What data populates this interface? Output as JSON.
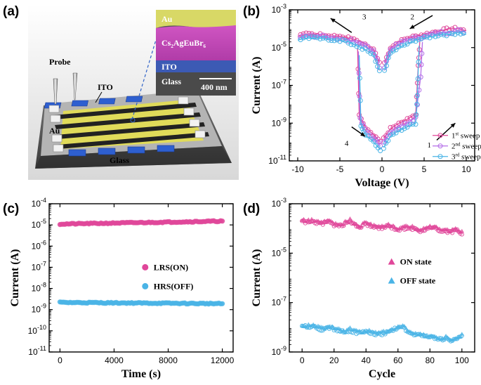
{
  "panels": {
    "a": {
      "label": "(a)",
      "probe_label": "Probe",
      "ito_label": "ITO",
      "au_label": "Au",
      "glass_label": "Glass",
      "inset": {
        "layer_au": "Au",
        "layer_cs": "Cs",
        "layer_cs_sub1": "2",
        "layer_cs_mid": "AgEuBr",
        "layer_cs_sub2": "6",
        "layer_ito": "ITO",
        "layer_glass": "Glass",
        "scale_bar": "400 nm"
      }
    },
    "b": {
      "label": "(b)"
    },
    "c": {
      "label": "(c)"
    },
    "d": {
      "label": "(d)"
    }
  },
  "colors": {
    "pink": "#e0479a",
    "purple": "#b46ee8",
    "cyan": "#4ab4e6",
    "au_yellow": "#e8e63a",
    "inset_pink": "#c848b8",
    "inset_blue": "#3c5ab4"
  },
  "chart_data": [
    {
      "id": "b",
      "type": "line",
      "xlabel": "Voltage (V)",
      "ylabel": "Current (A)",
      "xlim": [
        -11,
        11
      ],
      "ylim_log10": [
        -11,
        -3
      ],
      "x_ticks": [
        "-10",
        "-5",
        "0",
        "5",
        "10"
      ],
      "x_tick_values": [
        -10,
        -5,
        0,
        5,
        10
      ],
      "y_tick_exponents": [
        "-11",
        "-9",
        "-7",
        "-5",
        "-3"
      ],
      "y_tick_base": "10",
      "sweep_arrows": [
        "1",
        "2",
        "3",
        "4"
      ],
      "legend": [
        {
          "base": "1",
          "sup": "st",
          "rest": " sweep"
        },
        {
          "base": "2",
          "sup": "nd",
          "rest": " sweep"
        },
        {
          "base": "3",
          "sup": "rd",
          "rest": " sweep"
        }
      ],
      "series": [
        {
          "name": "1st sweep",
          "color": "#e0479a",
          "log_current": {
            "upper_pos": [
              [
                0.3,
                -5.8
              ],
              [
                1,
                -5.0
              ],
              [
                2,
                -4.7
              ],
              [
                3,
                -4.5
              ],
              [
                4,
                -4.4
              ],
              [
                5,
                -4.3
              ],
              [
                6,
                -4.2
              ],
              [
                7,
                -4.1
              ],
              [
                8,
                -4.0
              ],
              [
                9,
                -4.0
              ],
              [
                10,
                -4.1
              ]
            ],
            "lower_pos": [
              [
                0.2,
                -9.8
              ],
              [
                1,
                -9.3
              ],
              [
                2,
                -9.0
              ],
              [
                3,
                -8.8
              ],
              [
                4,
                -8.5
              ],
              [
                4.3,
                -6.0
              ],
              [
                4.5,
                -4.6
              ]
            ],
            "upper_neg": [
              [
                -0.3,
                -5.8
              ],
              [
                -1,
                -5.1
              ],
              [
                -2,
                -4.8
              ],
              [
                -3,
                -4.6
              ],
              [
                -4,
                -4.5
              ],
              [
                -5,
                -4.4
              ],
              [
                -6,
                -4.4
              ],
              [
                -7,
                -4.3
              ],
              [
                -8,
                -4.3
              ],
              [
                -9,
                -4.3
              ],
              [
                -10,
                -4.4
              ]
            ],
            "lower_neg": [
              [
                -0.2,
                -10.0
              ],
              [
                -1,
                -9.6
              ],
              [
                -2,
                -9.2
              ],
              [
                -2.7,
                -8.6
              ],
              [
                -2.9,
                -5.0
              ]
            ]
          }
        },
        {
          "name": "2nd sweep",
          "color": "#b46ee8",
          "log_current": {
            "upper_pos": [
              [
                0.3,
                -6.0
              ],
              [
                1,
                -5.1
              ],
              [
                2,
                -4.8
              ],
              [
                3,
                -4.6
              ],
              [
                4,
                -4.5
              ],
              [
                5,
                -4.4
              ],
              [
                6,
                -4.3
              ],
              [
                7,
                -4.2
              ],
              [
                8,
                -4.2
              ],
              [
                9,
                -4.1
              ],
              [
                10,
                -4.2
              ]
            ],
            "lower_pos": [
              [
                0.2,
                -10.0
              ],
              [
                1,
                -9.5
              ],
              [
                2,
                -9.2
              ],
              [
                3,
                -9.0
              ],
              [
                4,
                -8.7
              ],
              [
                4.6,
                -6.5
              ],
              [
                4.8,
                -4.7
              ]
            ],
            "upper_neg": [
              [
                -0.3,
                -6.0
              ],
              [
                -1,
                -5.2
              ],
              [
                -2,
                -4.9
              ],
              [
                -3,
                -4.7
              ],
              [
                -4,
                -4.6
              ],
              [
                -5,
                -4.5
              ],
              [
                -6,
                -4.5
              ],
              [
                -7,
                -4.4
              ],
              [
                -8,
                -4.4
              ],
              [
                -9,
                -4.4
              ],
              [
                -10,
                -4.5
              ]
            ],
            "lower_neg": [
              [
                -0.2,
                -10.2
              ],
              [
                -1,
                -9.8
              ],
              [
                -2,
                -9.4
              ],
              [
                -2.6,
                -8.8
              ],
              [
                -2.8,
                -5.2
              ]
            ]
          }
        },
        {
          "name": "3rd sweep",
          "color": "#4ab4e6",
          "log_current": {
            "upper_pos": [
              [
                0.3,
                -6.2
              ],
              [
                1,
                -5.3
              ],
              [
                2,
                -5.0
              ],
              [
                3,
                -4.8
              ],
              [
                4,
                -4.6
              ],
              [
                5,
                -4.5
              ],
              [
                6,
                -4.4
              ],
              [
                7,
                -4.3
              ],
              [
                8,
                -4.3
              ],
              [
                9,
                -4.2
              ],
              [
                10,
                -4.3
              ]
            ],
            "lower_pos": [
              [
                0.2,
                -10.3
              ],
              [
                1,
                -9.7
              ],
              [
                2,
                -9.4
              ],
              [
                3,
                -9.2
              ],
              [
                4,
                -9.0
              ],
              [
                4.2,
                -7.5
              ],
              [
                4.4,
                -4.9
              ]
            ],
            "upper_neg": [
              [
                -0.3,
                -6.2
              ],
              [
                -1,
                -5.4
              ],
              [
                -2,
                -5.1
              ],
              [
                -3,
                -4.9
              ],
              [
                -4,
                -4.7
              ],
              [
                -5,
                -4.6
              ],
              [
                -6,
                -4.6
              ],
              [
                -7,
                -4.5
              ],
              [
                -8,
                -4.5
              ],
              [
                -9,
                -4.5
              ],
              [
                -10,
                -4.6
              ]
            ],
            "lower_neg": [
              [
                -0.2,
                -10.4
              ],
              [
                -1,
                -10.0
              ],
              [
                -2,
                -9.6
              ],
              [
                -2.5,
                -9.1
              ],
              [
                -2.7,
                -5.4
              ]
            ]
          }
        }
      ]
    },
    {
      "id": "c",
      "type": "scatter",
      "xlabel": "Time (s)",
      "ylabel": "Current (A)",
      "xlim": [
        -800,
        12800
      ],
      "ylim_log10": [
        -11,
        -4
      ],
      "x_ticks": [
        "0",
        "4000",
        "8000",
        "12000"
      ],
      "x_tick_values": [
        0,
        4000,
        8000,
        12000
      ],
      "y_tick_exponents": [
        "-11",
        "-10",
        "-9",
        "-8",
        "-7",
        "-6",
        "-5",
        "-4"
      ],
      "y_tick_base": "10",
      "series": [
        {
          "name": "LRS(ON)",
          "color": "#e0479a",
          "x_range": [
            0,
            12000
          ],
          "log_current_start": -4.96,
          "log_current_end": -4.82
        },
        {
          "name": "HRS(OFF)",
          "color": "#4ab4e6",
          "x_range": [
            0,
            12000
          ],
          "log_current_start": -8.66,
          "log_current_end": -8.72
        }
      ]
    },
    {
      "id": "d",
      "type": "scatter",
      "xlabel": "Cycle",
      "ylabel": "Current (A)",
      "xlim": [
        -8,
        108
      ],
      "ylim_log10": [
        -9,
        -3
      ],
      "x_ticks": [
        "0",
        "20",
        "40",
        "60",
        "80",
        "100"
      ],
      "x_tick_values": [
        0,
        20,
        40,
        60,
        80,
        100
      ],
      "y_tick_exponents": [
        "-9",
        "-7",
        "-5",
        "-3"
      ],
      "y_tick_base": "10",
      "series": [
        {
          "name": "ON state",
          "color": "#e0479a",
          "log_current": [
            -3.7,
            -3.75,
            -3.72,
            -3.78,
            -3.8,
            -3.74,
            -3.85,
            -3.9,
            -3.82,
            -3.7,
            -3.88,
            -3.95,
            -3.8,
            -3.92,
            -4.0,
            -3.98,
            -3.9,
            -3.95,
            -4.05,
            -4.0,
            -3.95,
            -4.02,
            -4.1,
            -4.05,
            -3.98,
            -4.0,
            -4.08,
            -4.1,
            -4.15,
            -4.05,
            -4.2
          ]
        },
        {
          "name": "OFF state",
          "color": "#4ab4e6",
          "log_current": [
            -7.95,
            -8.0,
            -7.92,
            -8.05,
            -8.1,
            -8.0,
            -8.08,
            -8.15,
            -8.2,
            -8.12,
            -8.2,
            -8.25,
            -8.18,
            -8.22,
            -8.3,
            -8.26,
            -8.2,
            -8.1,
            -8.05,
            -8.0,
            -8.2,
            -8.35,
            -8.3,
            -8.38,
            -8.4,
            -8.42,
            -8.5,
            -8.45,
            -8.55,
            -8.5,
            -8.35
          ]
        }
      ]
    }
  ]
}
